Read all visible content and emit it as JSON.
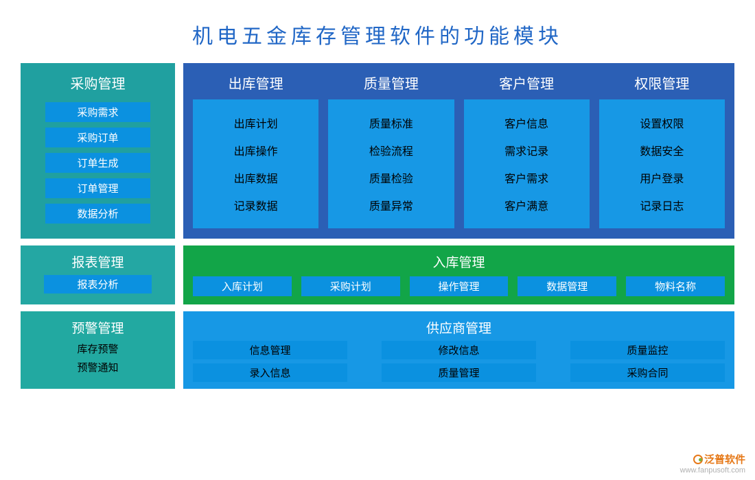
{
  "title": "机电五金库存管理软件的功能模块",
  "colors": {
    "title_text": "#2167c6",
    "teal_bg": "#20a0a0",
    "teal_bg2": "#24a7a3",
    "teal_bg3": "#22a9a1",
    "blue_panel": "#2b5fb5",
    "sub_btn": "#0b91e0",
    "right_box": "#1798e5",
    "green_panel": "#12a548",
    "white": "#ffffff",
    "black": "#000000"
  },
  "row1": {
    "left": {
      "header": "采购管理",
      "items": [
        "采购需求",
        "采购订单",
        "订单生成",
        "订单管理",
        "数据分析"
      ]
    },
    "right_cols": [
      {
        "header": "出库管理",
        "items": [
          "出库计划",
          "出库操作",
          "出库数据",
          "记录数据"
        ]
      },
      {
        "header": "质量管理",
        "items": [
          "质量标准",
          "检验流程",
          "质量检验",
          "质量异常"
        ]
      },
      {
        "header": "客户管理",
        "items": [
          "客户信息",
          "需求记录",
          "客户需求",
          "客户满意"
        ]
      },
      {
        "header": "权限管理",
        "items": [
          "设置权限",
          "数据安全",
          "用户登录",
          "记录日志"
        ]
      }
    ]
  },
  "row2": {
    "left": {
      "header": "报表管理",
      "item": "报表分析"
    },
    "right": {
      "header": "入库管理",
      "items": [
        "入库计划",
        "采购计划",
        "操作管理",
        "数据管理",
        "物料名称"
      ]
    }
  },
  "row3": {
    "left": {
      "header": "预警管理",
      "items": [
        "库存预警",
        "预警通知"
      ]
    },
    "right": {
      "header": "供应商管理",
      "cols": [
        [
          "信息管理",
          "录入信息"
        ],
        [
          "修改信息",
          "质量管理"
        ],
        [
          "质量监控",
          "采购合同"
        ]
      ]
    }
  },
  "watermark": {
    "brand": "泛普软件",
    "url": "www.fanpusoft.com"
  }
}
